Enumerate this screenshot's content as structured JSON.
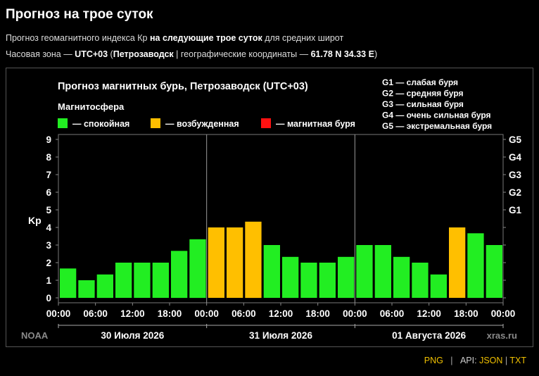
{
  "page": {
    "title": "Прогноз на трое суток",
    "line1": {
      "prefix": "Прогноз геомагнитного индекса Кр ",
      "bold": "на следующие трое суток",
      "suffix": " для средних широт"
    },
    "line2": {
      "prefix": "Часовая зона — ",
      "tz": "UTC+03",
      "open": " (",
      "city": "Петрозаводск",
      "mid": " | географические координаты — ",
      "coords": "61.78 N 34.33 E",
      "close": ")"
    }
  },
  "footer": {
    "png": "PNG",
    "sep": "|",
    "api": "API:",
    "json": "JSON",
    "txt": "TXT"
  },
  "chart_data": {
    "type": "bar",
    "title": "Прогноз магнитных бурь, Петрозаводск (UTC+03)",
    "legend_title": "Магнитосфера",
    "legend": [
      {
        "label": "— спокойная",
        "color": "#22ee22"
      },
      {
        "label": "— возбужденная",
        "color": "#ffbf00"
      },
      {
        "label": "— магнитная буря",
        "color": "#ff1111"
      }
    ],
    "g_legend": [
      "G1 — слабая буря",
      "G2 — средняя буря",
      "G3 — сильная буря",
      "G4 — очень сильная буря",
      "G5 — экстремальная буря"
    ],
    "ylabel": "Kp",
    "ylim": [
      0,
      9
    ],
    "y_ticks": [
      "0",
      "1",
      "2",
      "3",
      "4",
      "5",
      "6",
      "7",
      "8",
      "9"
    ],
    "right_ticks": [
      {
        "label": "G1",
        "value": 5
      },
      {
        "label": "G2",
        "value": 6
      },
      {
        "label": "G3",
        "value": 7
      },
      {
        "label": "G4",
        "value": 8
      },
      {
        "label": "G5",
        "value": 9
      }
    ],
    "x_tick_labels": [
      "00:00",
      "06:00",
      "12:00",
      "18:00",
      "00:00",
      "06:00",
      "12:00",
      "18:00",
      "00:00",
      "06:00",
      "12:00",
      "18:00",
      "00:00"
    ],
    "days": [
      "30 Июля 2026",
      "31 Июля 2026",
      "01 Августа 2026"
    ],
    "values": [
      1.67,
      1.0,
      1.33,
      2.0,
      2.0,
      2.0,
      2.67,
      3.33,
      4.0,
      4.0,
      4.33,
      3.0,
      2.33,
      2.0,
      2.0,
      2.33,
      3.0,
      3.0,
      2.33,
      2.0,
      1.33,
      4.0,
      3.67,
      3.0
    ],
    "colors": {
      "quiet": "#22ee22",
      "active": "#ffbf00",
      "storm": "#ff1111"
    },
    "watermark_left": "NOAA",
    "watermark_right": "xras.ru"
  }
}
